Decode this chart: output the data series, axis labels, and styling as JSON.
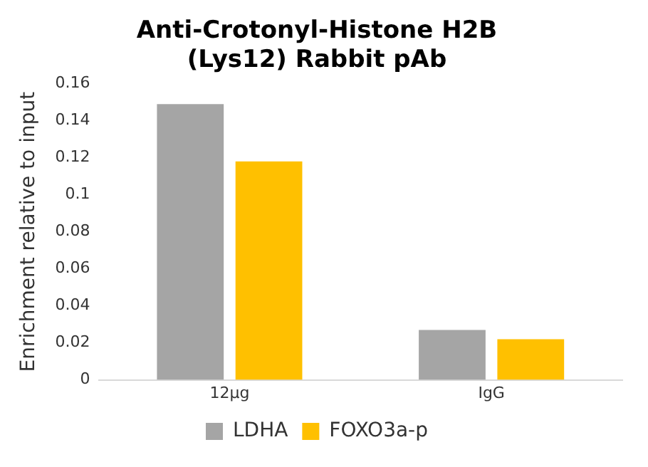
{
  "chart_data": {
    "type": "bar",
    "title": "Anti-Crotonyl-Histone H2B (Lys12) Rabbit pAb",
    "ylabel": "Enrichment relative to input",
    "categories": [
      "12μg",
      "IgG"
    ],
    "series": [
      {
        "name": "LDHA",
        "color": "#a5a5a5",
        "values": [
          0.149,
          0.027
        ]
      },
      {
        "name": "FOXO3a-p",
        "color": "#ffc000",
        "values": [
          0.118,
          0.022
        ]
      }
    ],
    "ylim": [
      0,
      0.16
    ],
    "yticks": [
      0,
      0.02,
      0.04,
      0.06,
      0.08,
      0.1,
      0.12,
      0.14,
      0.16
    ],
    "grid": false,
    "legend": "bottom"
  }
}
